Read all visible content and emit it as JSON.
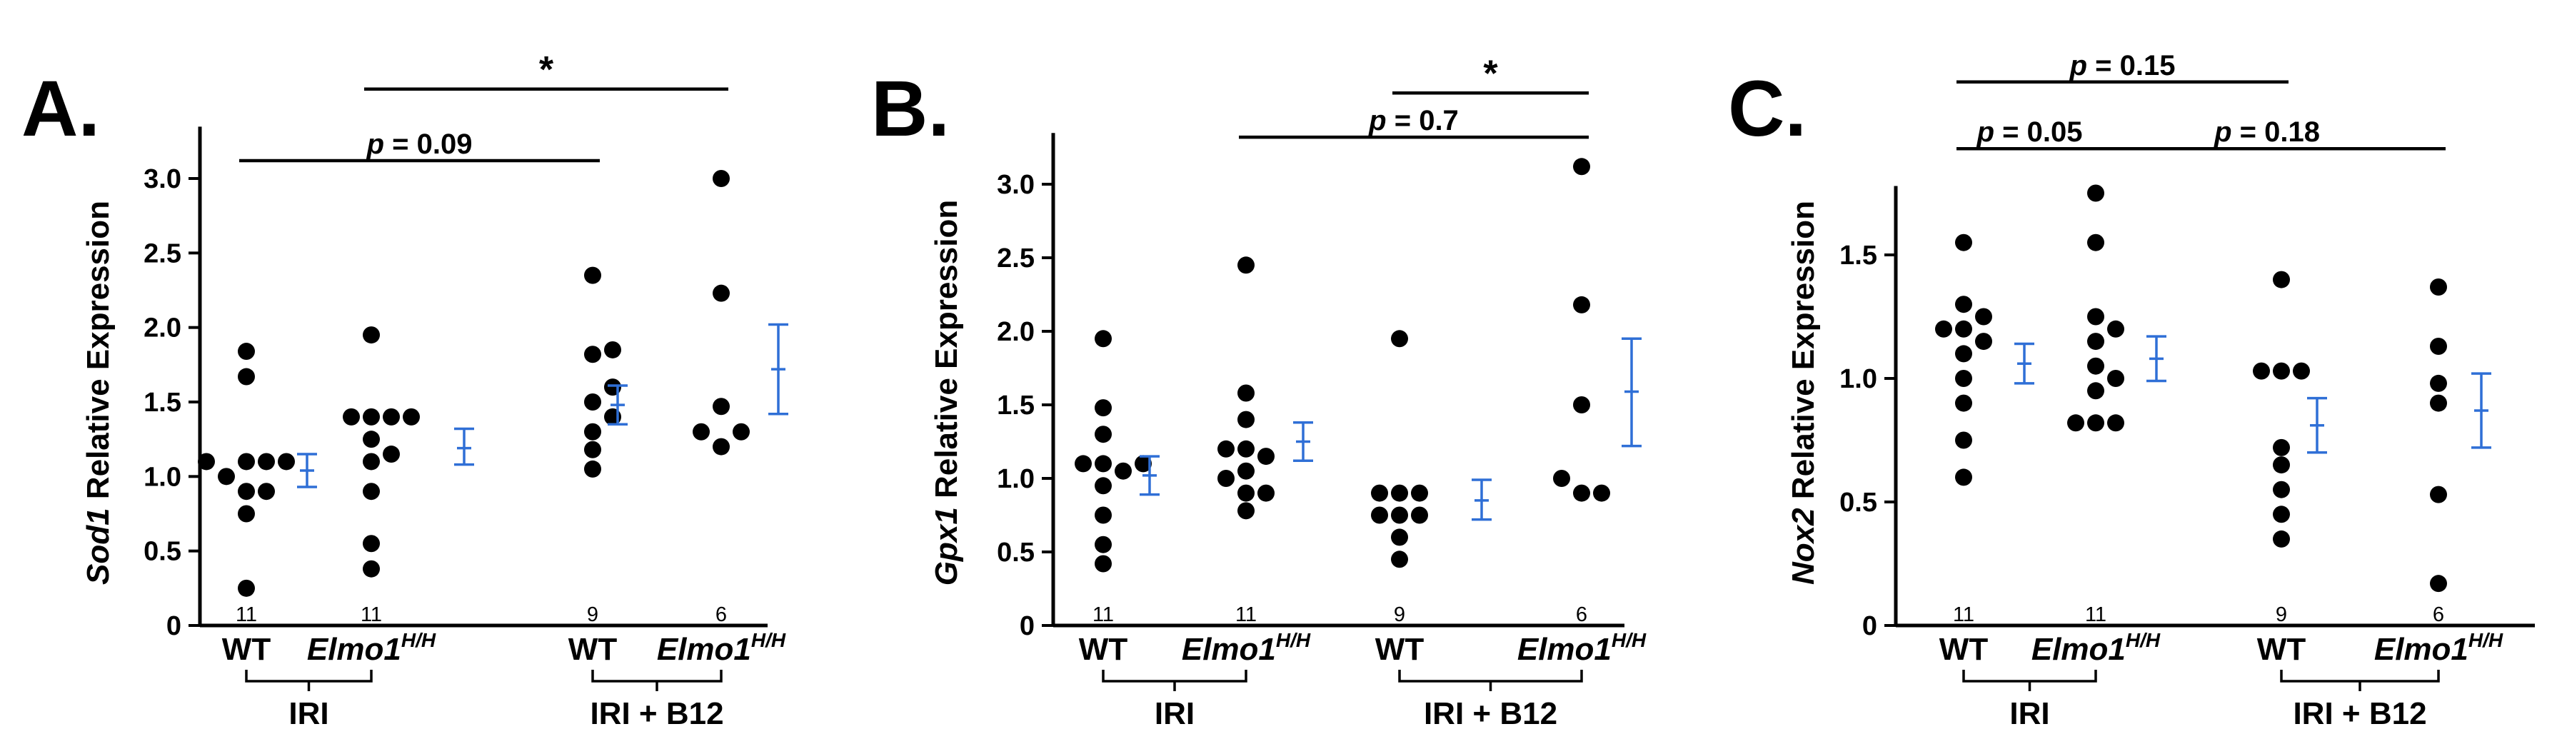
{
  "colors": {
    "points": "#000000",
    "error_bars": "#2f6fd6"
  },
  "chart_data": [
    {
      "type": "scatter",
      "panel_label": "A.",
      "ylabel_gene": "Sod1",
      "ylabel_rest": " Relative Expression",
      "ylim": [
        0,
        3.3
      ],
      "yticks": [
        0,
        0.5,
        1.0,
        1.5,
        2.0,
        2.5,
        3.0
      ],
      "ytick_labels": [
        "0",
        "0.5",
        "1.0",
        "1.5",
        "2.0",
        "2.5",
        "3.0"
      ],
      "categories": [
        "WT",
        "Elmo1H/H",
        "WT",
        "Elmo1H/H"
      ],
      "groups": [
        "IRI",
        "IRI + B12"
      ],
      "n": [
        "11",
        "11",
        "9",
        "6"
      ],
      "points": [
        [
          0.25,
          0.75,
          0.9,
          0.9,
          1.0,
          1.1,
          1.1,
          1.1,
          1.1,
          1.67,
          1.84
        ],
        [
          0.38,
          0.55,
          0.9,
          1.1,
          1.15,
          1.25,
          1.4,
          1.4,
          1.4,
          1.4,
          1.95
        ],
        [
          1.05,
          1.18,
          1.3,
          1.4,
          1.5,
          1.6,
          1.82,
          1.85,
          2.35
        ],
        [
          1.2,
          1.3,
          1.47,
          2.23,
          3.0,
          1.3
        ]
      ],
      "error_bars": [
        {
          "mean": 1.04,
          "lo": 0.93,
          "hi": 1.15
        },
        {
          "mean": 1.19,
          "lo": 1.08,
          "hi": 1.32
        },
        {
          "mean": 1.48,
          "lo": 1.35,
          "hi": 1.61
        },
        {
          "mean": 1.72,
          "lo": 1.42,
          "hi": 2.02
        }
      ],
      "annotations": [
        {
          "text_p": "p",
          "text_rest": " = 0.09",
          "from": 0,
          "to": 2,
          "y": 3.12
        },
        {
          "text_star": "*",
          "from": 1,
          "to": 3,
          "y": 3.6
        }
      ]
    },
    {
      "type": "scatter",
      "panel_label": "B.",
      "ylabel_gene": "Gpx1",
      "ylabel_rest": " Relative Expression",
      "ylim": [
        0,
        3.3
      ],
      "yticks": [
        0,
        0.5,
        1.0,
        1.5,
        2.0,
        2.5,
        3.0
      ],
      "ytick_labels": [
        "0",
        "0.5",
        "1.0",
        "1.5",
        "2.0",
        "2.5",
        "3.0"
      ],
      "categories": [
        "WT",
        "Elmo1H/H",
        "WT",
        "Elmo1H/H"
      ],
      "groups": [
        "IRI",
        "IRI + B12"
      ],
      "n": [
        "11",
        "11",
        "9",
        "6"
      ],
      "points": [
        [
          0.42,
          0.55,
          0.75,
          0.95,
          1.05,
          1.1,
          1.1,
          1.1,
          1.3,
          1.48,
          1.95
        ],
        [
          0.78,
          0.9,
          0.9,
          1.0,
          1.05,
          1.15,
          1.2,
          1.2,
          1.4,
          1.58,
          2.45
        ],
        [
          0.45,
          0.6,
          0.75,
          0.75,
          0.75,
          0.9,
          0.9,
          0.9,
          1.95
        ],
        [
          0.9,
          1.0,
          1.5,
          2.18,
          3.12,
          0.9
        ]
      ],
      "error_bars": [
        {
          "mean": 1.02,
          "lo": 0.89,
          "hi": 1.15
        },
        {
          "mean": 1.25,
          "lo": 1.12,
          "hi": 1.38
        },
        {
          "mean": 0.85,
          "lo": 0.72,
          "hi": 0.99
        },
        {
          "mean": 1.59,
          "lo": 1.22,
          "hi": 1.95
        }
      ],
      "annotations": [
        {
          "text_p": "p",
          "text_rest": " = 0.7",
          "from": 1,
          "to": 3,
          "y": 3.32
        },
        {
          "text_star": "*",
          "from": 2,
          "to": 3,
          "y": 3.62
        }
      ]
    },
    {
      "type": "scatter",
      "panel_label": "C.",
      "ylabel_gene": "Nox2",
      "ylabel_rest": " Relative Expression",
      "ylim": [
        0,
        1.75
      ],
      "yticks": [
        0,
        0.5,
        1.0,
        1.5
      ],
      "ytick_labels": [
        "0",
        "0.5",
        "1.0",
        "1.5"
      ],
      "categories": [
        "WT",
        "Elmo1H/H",
        "WT",
        "Elmo1H/H"
      ],
      "groups": [
        "IRI",
        "IRI + B12"
      ],
      "n": [
        "11",
        "11",
        "9",
        "6"
      ],
      "points": [
        [
          0.6,
          0.75,
          0.9,
          1.0,
          1.1,
          1.15,
          1.2,
          1.2,
          1.25,
          1.3,
          1.55
        ],
        [
          0.82,
          0.82,
          0.82,
          0.95,
          1.0,
          1.05,
          1.15,
          1.2,
          1.25,
          1.55,
          1.75
        ],
        [
          0.35,
          0.45,
          0.55,
          0.65,
          0.72,
          1.03,
          1.03,
          1.03,
          1.4
        ],
        [
          0.17,
          0.53,
          0.9,
          0.98,
          1.13,
          1.37
        ]
      ],
      "error_bars": [
        {
          "mean": 1.06,
          "lo": 0.98,
          "hi": 1.14
        },
        {
          "mean": 1.08,
          "lo": 0.99,
          "hi": 1.17
        },
        {
          "mean": 0.81,
          "lo": 0.7,
          "hi": 0.92
        },
        {
          "mean": 0.87,
          "lo": 0.72,
          "hi": 1.02
        }
      ],
      "annotations": [
        {
          "text_p": "p",
          "text_rest": " = 0.05",
          "from": 0,
          "to": 1,
          "y": 1.93
        },
        {
          "text_p": "p",
          "text_rest": " = 0.18",
          "from": 1,
          "to": 3,
          "y": 1.93
        },
        {
          "text_p": "p",
          "text_rest": " = 0.15",
          "from": 0,
          "to": 2,
          "y": 2.2
        }
      ]
    }
  ]
}
